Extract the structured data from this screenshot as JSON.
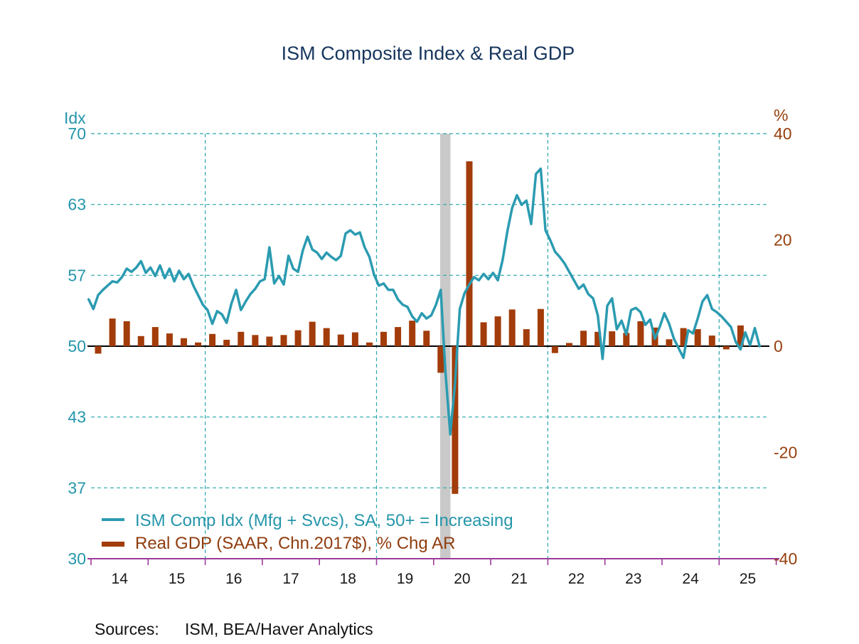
{
  "title": "ISM Composite Index & Real GDP",
  "sources": {
    "label": "Sources:",
    "value": "ISM, BEA/Haver Analytics"
  },
  "legend": {
    "line_label": "ISM Comp Idx (Mfg + Svcs), SA, 50+ = Increasing",
    "bar_label": "Real GDP (SAAR, Chn.2017$), % Chg AR"
  },
  "colors": {
    "title": "#17365d",
    "line": "#2b9bb1",
    "left_axis_text": "#2596aa",
    "grid": "#2aa5ab",
    "bar": "#a23c0a",
    "right_axis_text": "#96400e",
    "x_axis_line": "#9b3a9b",
    "x_axis_text": "#1a1a1a",
    "zero_line": "#000000",
    "recession_band": "#c9c9c9"
  },
  "chart_data": {
    "type": "combo-line-bar",
    "title": "ISM Composite Index & Real GDP",
    "grid": "dashed, horizontal at left ticks + vertical every 3 years",
    "left_axis": {
      "unit": "Idx",
      "tick_labels": [
        "70",
        "63",
        "57",
        "50",
        "43",
        "37",
        "30"
      ],
      "range": [
        30,
        70
      ]
    },
    "right_axis": {
      "unit": "%",
      "tick_labels": [
        "40",
        "20",
        "0",
        "-20",
        "-40"
      ],
      "range": [
        -40,
        40
      ]
    },
    "x_axis": {
      "tick_labels": [
        "14",
        "15",
        "16",
        "17",
        "18",
        "19",
        "20",
        "21",
        "22",
        "23",
        "24",
        "25"
      ],
      "first_year": 2014,
      "years_shown": 12,
      "vertical_gridline_years": [
        2016,
        2019,
        2022,
        2025
      ]
    },
    "zero_reference": {
      "left_value": 50,
      "right_value": 0
    },
    "recession_band": {
      "from_decimal_year": 2020.115,
      "to_decimal_year": 2020.295
    },
    "line_series": {
      "name": "ISM Comp Idx (Mfg + Svcs), SA, 50+ = Increasing",
      "frequency": "monthly",
      "start": "2013-12",
      "values": [
        54.4,
        53.5,
        54.8,
        55.3,
        55.7,
        56.1,
        56.0,
        56.5,
        57.3,
        57.0,
        57.4,
        58.0,
        56.9,
        57.4,
        56.6,
        57.6,
        56.4,
        57.3,
        56.1,
        57.1,
        56.3,
        56.8,
        55.7,
        54.8,
        53.9,
        53.4,
        52.1,
        53.3,
        53.0,
        52.2,
        54.0,
        55.3,
        53.4,
        54.2,
        54.9,
        55.4,
        56.1,
        56.3,
        59.3,
        55.9,
        56.6,
        55.8,
        58.5,
        57.3,
        57.0,
        59.0,
        60.3,
        59.1,
        58.8,
        58.2,
        58.8,
        58.4,
        58.1,
        58.5,
        60.6,
        60.9,
        60.5,
        60.7,
        59.3,
        58.4,
        56.7,
        55.7,
        55.9,
        55.3,
        55.3,
        54.4,
        53.9,
        53.7,
        52.8,
        52.3,
        53.1,
        52.6,
        52.9,
        53.9,
        55.3,
        47.5,
        41.7,
        46.5,
        53.5,
        55.0,
        55.8,
        56.5,
        56.2,
        56.8,
        56.3,
        56.9,
        56.2,
        58.1,
        60.8,
        63.0,
        64.2,
        63.3,
        63.7,
        61.5,
        66.2,
        66.7,
        60.9,
        60.0,
        58.9,
        58.4,
        57.8,
        57.0,
        56.2,
        55.4,
        55.8,
        54.9,
        54.5,
        52.9,
        48.8,
        53.8,
        54.5,
        51.6,
        52.4,
        51.1,
        53.4,
        53.6,
        53.2,
        52.0,
        52.5,
        50.7,
        51.8,
        53.1,
        52.1,
        50.7,
        49.8,
        48.9,
        51.5,
        51.2,
        52.6,
        54.2,
        54.8,
        53.5,
        53.2,
        52.8,
        52.3,
        51.8,
        50.4,
        49.7,
        51.3,
        50.1,
        51.7,
        50.0
      ]
    },
    "bar_series": {
      "name": "Real GDP (SAAR, Chn.2017$), % Chg AR",
      "frequency": "quarterly",
      "start": "2014-Q1",
      "values": [
        -1.4,
        5.2,
        4.7,
        1.9,
        3.6,
        2.4,
        1.5,
        0.7,
        2.3,
        1.2,
        2.7,
        2.1,
        1.8,
        2.1,
        3.0,
        4.6,
        3.4,
        2.2,
        2.6,
        0.7,
        2.7,
        3.6,
        4.8,
        2.9,
        -5.0,
        -27.8,
        34.8,
        4.5,
        5.6,
        6.9,
        3.2,
        7.0,
        -1.3,
        0.6,
        2.9,
        2.7,
        2.8,
        2.5,
        4.7,
        3.5,
        1.3,
        3.4,
        3.2,
        2.0,
        -0.6,
        3.9
      ]
    }
  }
}
